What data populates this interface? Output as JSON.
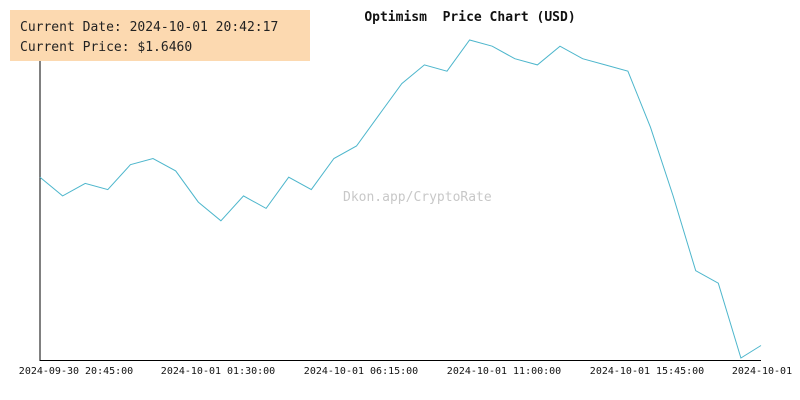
{
  "info": {
    "date_label": "Current Date:",
    "date_value": "2024-10-01 20:42:17",
    "price_label": "Current Price:",
    "price_value": "$1.6460"
  },
  "watermark": "Dkon.app/CryptoRate",
  "colors": {
    "line": "#4db6cc",
    "axis": "#000000",
    "info_bg": "#fcd9b0"
  },
  "chart_data": {
    "type": "line",
    "title": "Optimism  Price Chart (USD)",
    "x_tick_labels": [
      "2024-09-30 20:45:00",
      "2024-10-01 01:30:00",
      "2024-10-01 06:15:00",
      "2024-10-01 11:00:00",
      "2024-10-01 15:45:00",
      "2024-10-01"
    ],
    "x": [
      "2024-09-30 20:45",
      "2024-09-30 21:30",
      "2024-09-30 22:15",
      "2024-09-30 23:00",
      "2024-09-30 23:45",
      "2024-10-01 00:30",
      "2024-10-01 01:15",
      "2024-10-01 02:00",
      "2024-10-01 02:45",
      "2024-10-01 03:30",
      "2024-10-01 04:15",
      "2024-10-01 05:00",
      "2024-10-01 05:45",
      "2024-10-01 06:30",
      "2024-10-01 07:15",
      "2024-10-01 08:00",
      "2024-10-01 08:45",
      "2024-10-01 09:30",
      "2024-10-01 10:15",
      "2024-10-01 11:00",
      "2024-10-01 11:45",
      "2024-10-01 12:30",
      "2024-10-01 13:15",
      "2024-10-01 14:00",
      "2024-10-01 14:45",
      "2024-10-01 15:30",
      "2024-10-01 16:15",
      "2024-10-01 17:00",
      "2024-10-01 17:45",
      "2024-10-01 18:30",
      "2024-10-01 19:15",
      "2024-10-01 20:00",
      "2024-10-01 20:40"
    ],
    "series": [
      {
        "values": [
          1.93,
          1.9,
          1.92,
          1.91,
          1.95,
          1.96,
          1.94,
          1.89,
          1.86,
          1.9,
          1.88,
          1.93,
          1.91,
          1.96,
          1.98,
          2.03,
          2.08,
          2.11,
          2.1,
          2.15,
          2.14,
          2.12,
          2.11,
          2.14,
          2.12,
          2.11,
          2.1,
          2.01,
          1.9,
          1.78,
          1.76,
          1.64,
          1.66
        ]
      }
    ],
    "grid": false
  }
}
